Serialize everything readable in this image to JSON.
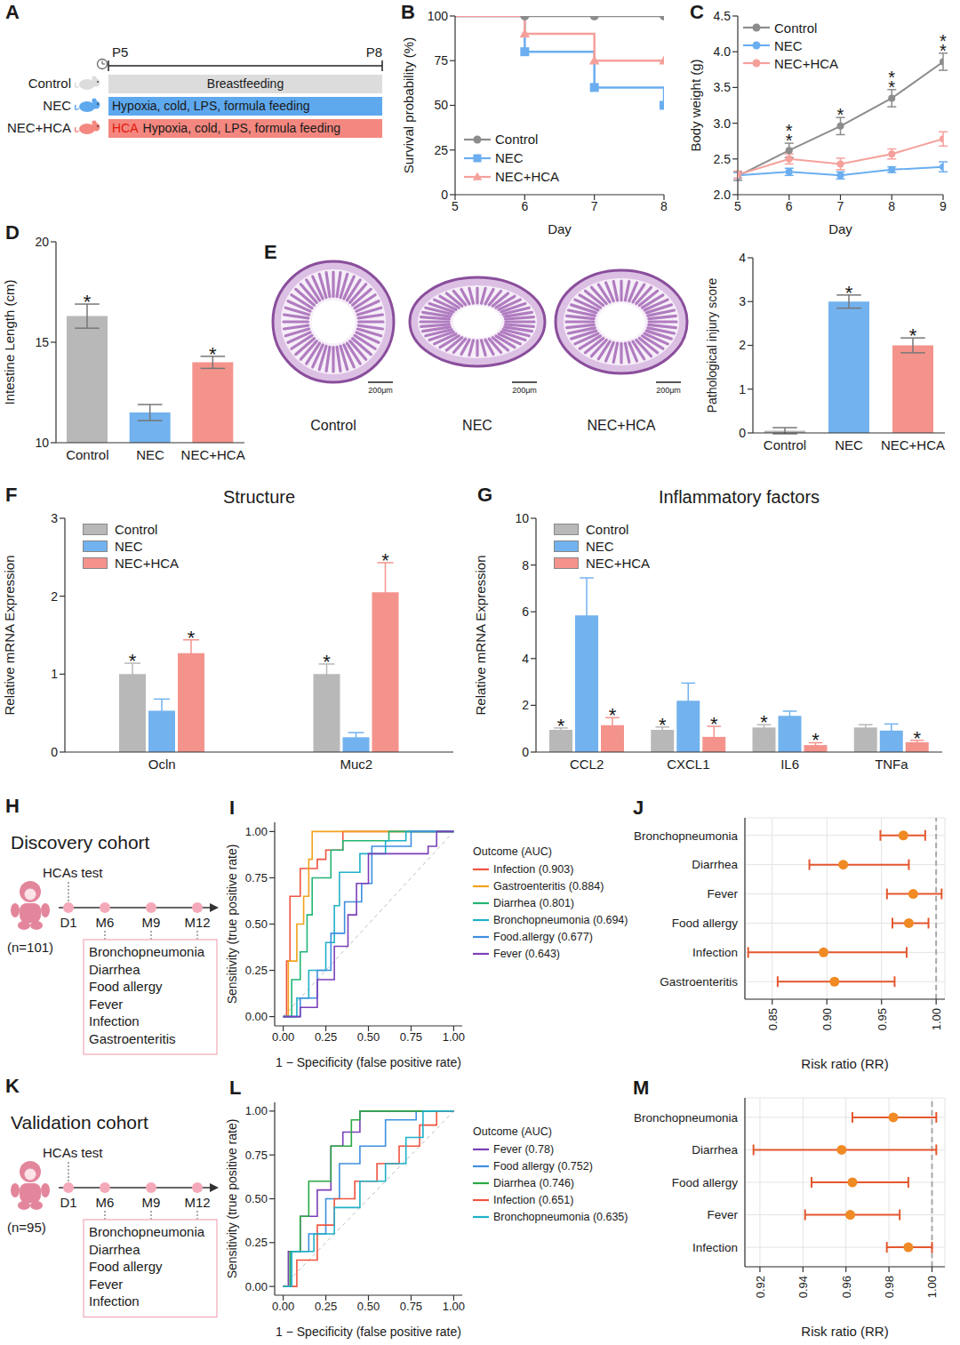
{
  "chart_data": [
    {
      "panel": "A",
      "type": "diagram",
      "timeline": [
        "P5",
        "P8"
      ],
      "groups": [
        {
          "name": "Control",
          "treatment": "Breastfeeding",
          "color": "#dcdcdc"
        },
        {
          "name": "NEC",
          "treatment": "Hypoxia, cold, LPS, formula feeding",
          "color": "#5ea8ee"
        },
        {
          "name": "NEC+HCA",
          "intervention": "HCA",
          "treatment": "Hypoxia, cold, LPS, formula feeding",
          "color": "#f4877f"
        }
      ]
    },
    {
      "panel": "B",
      "type": "line",
      "line_style": "step",
      "x_label": "Day",
      "y_label": "Survival probability (%)",
      "xlim": [
        5,
        8
      ],
      "xticks": [
        5,
        6,
        7,
        8
      ],
      "ylim": [
        0,
        100
      ],
      "yticks": [
        0,
        25,
        50,
        75,
        100
      ],
      "legend": "lower left",
      "series": [
        {
          "name": "Control",
          "color": "#8c8c8c",
          "marker": "circle",
          "x": [
            5,
            6,
            7,
            8
          ],
          "values": [
            100,
            100,
            100,
            100
          ]
        },
        {
          "name": "NEC",
          "color": "#6aaef0",
          "marker": "square",
          "x": [
            5,
            6,
            7,
            8
          ],
          "values": [
            100,
            80,
            60,
            50
          ]
        },
        {
          "name": "NEC+HCA",
          "color": "#f5a09b",
          "marker": "triangle",
          "x": [
            5,
            6,
            7,
            8
          ],
          "values": [
            100,
            90,
            75,
            75
          ]
        }
      ]
    },
    {
      "panel": "C",
      "type": "line",
      "x_label": "Day",
      "y_label": "Body weight (g)",
      "xlim": [
        5,
        9
      ],
      "xticks": [
        5,
        6,
        7,
        8,
        9
      ],
      "ylim": [
        2,
        4.5
      ],
      "yticks": [
        {
          "value": 2,
          "label": "2.0"
        },
        2.5,
        {
          "value": 3,
          "label": "3.0"
        },
        3.5,
        {
          "value": 4,
          "label": "4.0"
        },
        4.5
      ],
      "legend": "upper left",
      "x": [
        5,
        6,
        7,
        8,
        9
      ],
      "series": [
        {
          "name": "Control",
          "color": "#8c8c8c",
          "marker": "circle",
          "values": [
            2.26,
            2.62,
            2.96,
            3.35,
            3.86
          ],
          "errors": [
            0.06,
            0.1,
            0.12,
            0.12,
            0.12
          ],
          "significance": [
            null,
            [
              "*",
              "*"
            ],
            [
              "*"
            ],
            [
              "*",
              "*"
            ],
            [
              "*",
              "*"
            ]
          ]
        },
        {
          "name": "NEC",
          "color": "#6aaef0",
          "marker": "circle",
          "values": [
            2.27,
            2.32,
            2.27,
            2.35,
            2.39
          ],
          "errors": [
            0.04,
            0.05,
            0.05,
            0.04,
            0.07
          ]
        },
        {
          "name": "NEC+HCA",
          "color": "#f5a09b",
          "marker": "circle",
          "values": [
            2.28,
            2.5,
            2.43,
            2.57,
            2.78
          ],
          "errors": [
            0.05,
            0.07,
            0.08,
            0.07,
            0.1
          ]
        }
      ]
    },
    {
      "panel": "D",
      "type": "bar",
      "y_label": "Intestine Length (cm)",
      "categories": [
        "Control",
        "NEC",
        "NEC+HCA"
      ],
      "values": [
        16.3,
        11.5,
        14.0
      ],
      "errors": [
        0.6,
        0.4,
        0.3
      ],
      "significance": [
        "*",
        null,
        "*"
      ],
      "colors": [
        "#b8b8b8",
        "#72b2ee",
        "#f4938c"
      ],
      "ylim": [
        10,
        20
      ],
      "yticks": [
        10,
        15,
        20
      ]
    },
    {
      "panel": "E",
      "type": "bar",
      "images": [
        {
          "label": "Control",
          "scale_bar": "200μm"
        },
        {
          "label": "NEC",
          "scale_bar": "200μm"
        },
        {
          "label": "NEC+HCA",
          "scale_bar": "200μm"
        }
      ],
      "y_label": "Pathological injury score",
      "categories": [
        "Control",
        "NEC",
        "NEC+HCA"
      ],
      "values": [
        0.05,
        3.0,
        2.0
      ],
      "errors": [
        0.07,
        0.15,
        0.17
      ],
      "significance": [
        null,
        "*",
        "*"
      ],
      "colors": [
        "#b8b8b8",
        "#72b2ee",
        "#f4938c"
      ],
      "ylim": [
        0,
        4
      ],
      "yticks": [
        0,
        1,
        2,
        3,
        4
      ]
    },
    {
      "panel": "F",
      "type": "bar",
      "title": "Structure",
      "y_label": "Relative mRNA Expression",
      "categories": [
        "Ocln",
        "Muc2"
      ],
      "legend": "upper left",
      "ylim": [
        0,
        3
      ],
      "yticks": [
        0,
        1,
        2,
        3
      ],
      "series": [
        {
          "name": "Control",
          "color": "#b8b8b8",
          "values": [
            1.0,
            1.0
          ],
          "errors": [
            0.14,
            0.13
          ],
          "significance": [
            "*",
            "*"
          ]
        },
        {
          "name": "NEC",
          "color": "#72b2ee",
          "values": [
            0.53,
            0.19
          ],
          "errors": [
            0.15,
            0.06
          ]
        },
        {
          "name": "NEC+HCA",
          "color": "#f4938c",
          "values": [
            1.27,
            2.05
          ],
          "errors": [
            0.17,
            0.38
          ],
          "significance": [
            "*",
            "*"
          ]
        }
      ]
    },
    {
      "panel": "G",
      "type": "bar",
      "title": "Inflammatory factors",
      "y_label": "Relative mRNA Expression",
      "categories": [
        "CCL2",
        "CXCL1",
        "IL6",
        "TNFa"
      ],
      "legend": "upper left",
      "ylim": [
        0,
        10
      ],
      "yticks": [
        0,
        2,
        4,
        6,
        8,
        10
      ],
      "series": [
        {
          "name": "Control",
          "color": "#b8b8b8",
          "values": [
            0.95,
            0.95,
            1.05,
            1.05
          ],
          "errors": [
            0.08,
            0.12,
            0.12,
            0.12
          ],
          "significance": [
            "*",
            "*",
            "*",
            null
          ]
        },
        {
          "name": "NEC",
          "color": "#72b2ee",
          "values": [
            5.85,
            2.2,
            1.55,
            0.92
          ],
          "errors": [
            1.6,
            0.75,
            0.2,
            0.28
          ]
        },
        {
          "name": "NEC+HCA",
          "color": "#f4938c",
          "values": [
            1.15,
            0.65,
            0.3,
            0.42
          ],
          "errors": [
            0.32,
            0.45,
            0.1,
            0.08
          ],
          "significance": [
            "*",
            "*",
            "*",
            "*"
          ]
        }
      ]
    },
    {
      "panel": "H",
      "type": "diagram",
      "title": "Discovery cohort",
      "test": "HCAs test",
      "n": "(n=101)",
      "timepoints": [
        "D1",
        "M6",
        "M9",
        "M12"
      ],
      "outcomes": [
        "Bronchopneumonia",
        "Diarrhea",
        "Food allergy",
        "Fever",
        "Infection",
        "Gastroenteritis"
      ]
    },
    {
      "panel": "I",
      "type": "line",
      "x_label": "1 − Specificity (false positive rate)",
      "y_label": "Sensitivity (true positive rate)",
      "legend": "right",
      "legend_title": "Outcome (AUC)",
      "xlim": [
        -0.05,
        1.05
      ],
      "xticks": [
        {
          "value": 0,
          "label": "0.00"
        },
        0.25,
        {
          "value": 0.5,
          "label": "0.50"
        },
        0.75,
        {
          "value": 1,
          "label": "1.00"
        }
      ],
      "ylim": [
        -0.05,
        1.05
      ],
      "yticks": [
        {
          "value": 0,
          "label": "0.00"
        },
        0.25,
        {
          "value": 0.5,
          "label": "0.50"
        },
        0.75,
        {
          "value": 1,
          "label": "1.00"
        }
      ],
      "series": [
        {
          "name": "Infection (0.903)",
          "color": "#f0533f",
          "x": [
            0,
            0.02,
            0.02,
            0.04,
            0.04,
            0.1,
            0.1,
            0.2,
            0.2,
            0.25,
            0.25,
            0.35,
            0.35,
            1
          ],
          "values": [
            0,
            0,
            0.3,
            0.3,
            0.65,
            0.65,
            0.8,
            0.8,
            0.85,
            0.85,
            0.9,
            0.9,
            1,
            1
          ]
        },
        {
          "name": "Gastroenteritis (0.884)",
          "color": "#f2a21c",
          "x": [
            0,
            0.03,
            0.03,
            0.08,
            0.08,
            0.12,
            0.12,
            0.15,
            0.15,
            0.17,
            0.17,
            1
          ],
          "values": [
            0,
            0,
            0.3,
            0.3,
            0.5,
            0.5,
            0.65,
            0.65,
            0.85,
            0.85,
            1,
            1
          ]
        },
        {
          "name": "Diarrhea (0.801)",
          "color": "#22b573",
          "x": [
            0,
            0.05,
            0.05,
            0.1,
            0.1,
            0.14,
            0.14,
            0.17,
            0.17,
            0.28,
            0.28,
            0.35,
            0.35,
            0.62,
            0.62,
            1
          ],
          "values": [
            0,
            0,
            0.2,
            0.2,
            0.35,
            0.35,
            0.55,
            0.55,
            0.75,
            0.75,
            0.9,
            0.9,
            0.95,
            0.95,
            1,
            1
          ]
        },
        {
          "name": "Bronchopneumonia (0.694)",
          "color": "#1fb0c7",
          "x": [
            0,
            0.08,
            0.08,
            0.15,
            0.15,
            0.25,
            0.25,
            0.3,
            0.3,
            0.33,
            0.33,
            0.45,
            0.45,
            0.6,
            0.6,
            0.72,
            0.72,
            1
          ],
          "values": [
            0,
            0,
            0.1,
            0.1,
            0.25,
            0.25,
            0.4,
            0.4,
            0.6,
            0.6,
            0.78,
            0.78,
            0.88,
            0.88,
            0.95,
            0.95,
            1,
            1
          ]
        },
        {
          "name": "Food.allergy (0.677)",
          "color": "#3d8fe0",
          "x": [
            0,
            0.1,
            0.1,
            0.2,
            0.2,
            0.28,
            0.28,
            0.36,
            0.36,
            0.46,
            0.46,
            0.52,
            0.52,
            0.75,
            0.75,
            1
          ],
          "values": [
            0,
            0,
            0.1,
            0.1,
            0.25,
            0.25,
            0.45,
            0.45,
            0.62,
            0.62,
            0.72,
            0.72,
            0.92,
            0.92,
            1,
            1
          ]
        },
        {
          "name": "Fever (0.643)",
          "color": "#7b3fb8",
          "x": [
            0,
            0.1,
            0.1,
            0.2,
            0.2,
            0.3,
            0.3,
            0.38,
            0.38,
            0.43,
            0.43,
            0.5,
            0.5,
            0.85,
            0.85,
            0.9,
            0.9,
            1
          ],
          "values": [
            0,
            0,
            0.05,
            0.05,
            0.2,
            0.2,
            0.38,
            0.38,
            0.55,
            0.55,
            0.72,
            0.72,
            0.88,
            0.88,
            0.92,
            0.92,
            1,
            1
          ]
        }
      ]
    },
    {
      "panel": "J",
      "type": "forest",
      "x_label": "Risk ratio (RR)",
      "categories": [
        "Bronchopneumonia",
        "Diarrhea",
        "Fever",
        "Food allergy",
        "Infection",
        "Gastroenteritis"
      ],
      "values": [
        0.97,
        0.915,
        0.979,
        0.975,
        0.897,
        0.907
      ],
      "ci_low": [
        0.949,
        0.884,
        0.955,
        0.96,
        0.828,
        0.855
      ],
      "ci_high": [
        0.99,
        0.975,
        1.005,
        0.993,
        0.973,
        0.962
      ],
      "color": "#f08a24",
      "reference_line": 1,
      "grid": true,
      "xlim": [
        0.825,
        1.008
      ],
      "xticks": [
        0.85,
        {
          "value": 0.9,
          "label": "0.90"
        },
        0.95,
        {
          "value": 1,
          "label": "1.00"
        }
      ]
    },
    {
      "panel": "K",
      "type": "diagram",
      "title": "Validation cohort",
      "test": "HCAs test",
      "n": "(n=95)",
      "timepoints": [
        "D1",
        "M6",
        "M9",
        "M12"
      ],
      "outcomes": [
        "Bronchopneumonia",
        "Diarrhea",
        "Food allergy",
        "Fever",
        "Infection"
      ]
    },
    {
      "panel": "L",
      "type": "line",
      "x_label": "1 − Specificity (false positive rate)",
      "y_label": "Sensitivity (true positive rate)",
      "legend": "right",
      "legend_title": "Outcome (AUC)",
      "xlim": [
        -0.05,
        1.05
      ],
      "xticks": [
        {
          "value": 0,
          "label": "0.00"
        },
        0.25,
        {
          "value": 0.5,
          "label": "0.50"
        },
        0.75,
        {
          "value": 1,
          "label": "1.00"
        }
      ],
      "ylim": [
        -0.05,
        1.05
      ],
      "yticks": [
        {
          "value": 0,
          "label": "0.00"
        },
        0.25,
        {
          "value": 0.5,
          "label": "0.50"
        },
        0.75,
        {
          "value": 1,
          "label": "1.00"
        }
      ],
      "series": [
        {
          "name": "Fever (0.78)",
          "color": "#7b3fb8",
          "x": [
            0,
            0.03,
            0.03,
            0.1,
            0.1,
            0.2,
            0.2,
            0.28,
            0.28,
            0.35,
            0.35,
            0.45,
            0.45,
            1
          ],
          "values": [
            0,
            0,
            0.2,
            0.2,
            0.4,
            0.4,
            0.55,
            0.55,
            0.8,
            0.8,
            0.88,
            0.88,
            1,
            1
          ]
        },
        {
          "name": "Food allergy (0.752)",
          "color": "#3d8fe0",
          "x": [
            0,
            0.05,
            0.05,
            0.15,
            0.15,
            0.25,
            0.25,
            0.33,
            0.33,
            0.45,
            0.45,
            0.6,
            0.6,
            0.78,
            0.78,
            1
          ],
          "values": [
            0,
            0,
            0.2,
            0.2,
            0.3,
            0.3,
            0.5,
            0.5,
            0.7,
            0.7,
            0.8,
            0.8,
            0.95,
            0.95,
            1,
            1
          ]
        },
        {
          "name": "Diarrhea (0.746)",
          "color": "#2aa845",
          "x": [
            0,
            0.04,
            0.04,
            0.1,
            0.1,
            0.15,
            0.15,
            0.28,
            0.28,
            0.4,
            0.4,
            0.45,
            0.45,
            1
          ],
          "values": [
            0,
            0,
            0.2,
            0.2,
            0.4,
            0.4,
            0.6,
            0.6,
            0.8,
            0.8,
            0.95,
            0.95,
            1,
            1
          ]
        },
        {
          "name": "Infection (0.651)",
          "color": "#f0533f",
          "x": [
            0,
            0.08,
            0.08,
            0.2,
            0.2,
            0.3,
            0.3,
            0.42,
            0.42,
            0.55,
            0.55,
            0.68,
            0.68,
            0.8,
            0.8,
            0.9,
            0.9,
            1
          ],
          "values": [
            0,
            0,
            0.15,
            0.15,
            0.35,
            0.35,
            0.5,
            0.5,
            0.6,
            0.6,
            0.7,
            0.7,
            0.8,
            0.8,
            0.92,
            0.92,
            1,
            1
          ]
        },
        {
          "name": "Bronchopneumonia (0.635)",
          "color": "#1fb0c7",
          "x": [
            0,
            0.05,
            0.05,
            0.18,
            0.18,
            0.3,
            0.3,
            0.45,
            0.45,
            0.6,
            0.6,
            0.72,
            0.72,
            0.82,
            0.82,
            1
          ],
          "values": [
            0,
            0,
            0.2,
            0.2,
            0.3,
            0.3,
            0.45,
            0.45,
            0.6,
            0.6,
            0.7,
            0.7,
            0.85,
            0.85,
            1,
            1
          ]
        }
      ]
    },
    {
      "panel": "M",
      "type": "forest",
      "x_label": "Risk ratio (RR)",
      "categories": [
        "Bronchopneumonia",
        "Diarrhea",
        "Food allergy",
        "Fever",
        "Infection"
      ],
      "values": [
        0.982,
        0.958,
        0.963,
        0.962,
        0.989
      ],
      "ci_low": [
        0.963,
        0.917,
        0.944,
        0.941,
        0.979
      ],
      "ci_high": [
        1.002,
        1.002,
        0.989,
        0.985,
        1.0
      ],
      "color": "#f08a24",
      "reference_line": 1,
      "grid": true,
      "xlim": [
        0.913,
        1.006
      ],
      "xticks": [
        0.92,
        0.94,
        0.96,
        0.98,
        {
          "value": 1,
          "label": "1.00"
        }
      ]
    }
  ]
}
